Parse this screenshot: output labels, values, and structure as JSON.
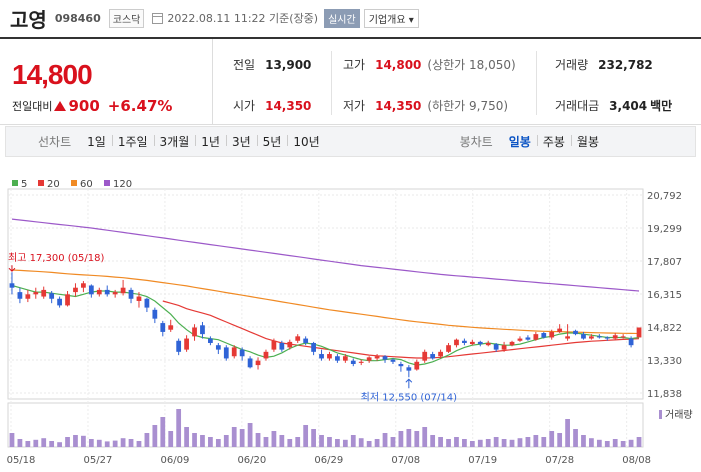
{
  "header": {
    "name": "고영",
    "code": "098460",
    "market": "코스닥",
    "datetime": "2022.08.11 11:22 기준(장중)",
    "realtime": "실시간",
    "overview": "기업개요 ▾"
  },
  "summary": {
    "price": "14,800",
    "change_label": "전일대비",
    "change": "900",
    "change_pct": "+6.47%",
    "prev_close_label": "전일",
    "prev_close": "13,900",
    "high_label": "고가",
    "high": "14,800",
    "upper_limit": "(상한가 18,050)",
    "volume_label": "거래량",
    "volume": "232,782",
    "open_label": "시가",
    "open": "14,350",
    "low_label": "저가",
    "low": "14,350",
    "lower_limit": "(하한가 9,750)",
    "amount_label": "거래대금",
    "amount": "3,404",
    "amount_unit": "백만"
  },
  "line_tabs": {
    "title": "선차트",
    "items": [
      "1일",
      "1주일",
      "3개월",
      "1년",
      "3년",
      "5년",
      "10년"
    ]
  },
  "candle_tabs": {
    "title": "봉차트",
    "items": [
      "일봉",
      "주봉",
      "월봉"
    ],
    "active": "일봉"
  },
  "colors": {
    "up": "#e53935",
    "down": "#2f63d6",
    "ma5": "#4caf50",
    "ma20": "#e53935",
    "ma60": "#f08a24",
    "ma120": "#9c59c9",
    "volume": "#a98fd0"
  },
  "chart_data": {
    "type": "candlestick",
    "legend": [
      "5",
      "20",
      "60",
      "120"
    ],
    "x_labels": [
      "05/18",
      "05/27",
      "06/09",
      "06/20",
      "06/29",
      "07/08",
      "07/19",
      "07/28",
      "08/08"
    ],
    "y_ticks": [
      "20,792",
      "19,299",
      "17,807",
      "16,315",
      "14,822",
      "13,330",
      "11,838"
    ],
    "ylim": [
      11838,
      20792
    ],
    "high_annotation": "최고 17,300 (05/18)",
    "low_annotation": "최저 12,550 (07/14)",
    "volume_label": "거래량",
    "candles": [
      [
        16800,
        16600,
        17300,
        16300
      ],
      [
        16400,
        16100,
        16600,
        15900
      ],
      [
        16100,
        16300,
        16500,
        15950
      ],
      [
        16300,
        16400,
        16600,
        16100
      ],
      [
        16200,
        16500,
        16650,
        16100
      ],
      [
        16350,
        16100,
        16450,
        15900
      ],
      [
        16100,
        15800,
        16200,
        15700
      ],
      [
        15800,
        16300,
        16450,
        15750
      ],
      [
        16400,
        16600,
        16800,
        16200
      ],
      [
        16600,
        16800,
        16900,
        16400
      ],
      [
        16700,
        16300,
        16750,
        16150
      ],
      [
        16300,
        16500,
        16600,
        16200
      ],
      [
        16500,
        16300,
        16700,
        16200
      ],
      [
        16300,
        16400,
        16500,
        16150
      ],
      [
        16350,
        16600,
        16950,
        16250
      ],
      [
        16500,
        16100,
        16600,
        15900
      ],
      [
        16000,
        16200,
        16400,
        15700
      ],
      [
        16100,
        15700,
        16150,
        15500
      ],
      [
        15600,
        15200,
        15700,
        15000
      ],
      [
        15000,
        14600,
        15100,
        14400
      ],
      [
        14700,
        14900,
        15150,
        14600
      ],
      [
        14200,
        13700,
        14300,
        13550
      ],
      [
        13800,
        14300,
        14450,
        13700
      ],
      [
        14400,
        14800,
        14950,
        14200
      ],
      [
        14900,
        14500,
        15050,
        14300
      ],
      [
        14300,
        14100,
        14400,
        14000
      ],
      [
        14000,
        13800,
        14100,
        13600
      ],
      [
        13900,
        13400,
        14000,
        13300
      ],
      [
        13500,
        13900,
        14000,
        13400
      ],
      [
        13800,
        13500,
        13900,
        13300
      ],
      [
        13400,
        13000,
        13500,
        12950
      ],
      [
        13100,
        13300,
        13450,
        12900
      ],
      [
        13400,
        13700,
        13800,
        13300
      ],
      [
        13800,
        14200,
        14300,
        13700
      ],
      [
        14100,
        13800,
        14200,
        13700
      ],
      [
        13900,
        14150,
        14250,
        13800
      ],
      [
        14200,
        14400,
        14500,
        14100
      ],
      [
        14300,
        14100,
        14400,
        14000
      ],
      [
        14100,
        13700,
        14150,
        13550
      ],
      [
        13600,
        13400,
        13800,
        13300
      ],
      [
        13400,
        13600,
        13700,
        13300
      ],
      [
        13500,
        13300,
        13600,
        13200
      ],
      [
        13300,
        13500,
        13600,
        13200
      ],
      [
        13300,
        13150,
        13400,
        13050
      ],
      [
        13200,
        13250,
        13350,
        13100
      ],
      [
        13300,
        13450,
        13500,
        13200
      ],
      [
        13400,
        13500,
        13600,
        13300
      ],
      [
        13500,
        13350,
        13550,
        13200
      ],
      [
        13350,
        13250,
        13400,
        13150
      ],
      [
        13150,
        13050,
        13250,
        12800
      ],
      [
        13000,
        12850,
        13100,
        12550
      ],
      [
        12900,
        13250,
        13350,
        12850
      ],
      [
        13300,
        13700,
        13800,
        13200
      ],
      [
        13600,
        13400,
        13700,
        13350
      ],
      [
        13500,
        13700,
        13800,
        13400
      ],
      [
        13700,
        14000,
        14100,
        13650
      ],
      [
        14000,
        14250,
        14300,
        13900
      ],
      [
        14200,
        14100,
        14300,
        14000
      ],
      [
        14050,
        14150,
        14250,
        14000
      ],
      [
        14150,
        14050,
        14200,
        13950
      ],
      [
        14000,
        14100,
        14200,
        13950
      ],
      [
        14050,
        13800,
        14100,
        13700
      ],
      [
        13800,
        14000,
        14150,
        13700
      ],
      [
        14000,
        14150,
        14200,
        13950
      ],
      [
        14200,
        14300,
        14400,
        14150
      ],
      [
        14350,
        14250,
        14450,
        14200
      ],
      [
        14250,
        14500,
        14600,
        14200
      ],
      [
        14550,
        14350,
        14600,
        14300
      ],
      [
        14350,
        14600,
        14700,
        14250
      ],
      [
        14600,
        14750,
        14950,
        14550
      ],
      [
        14300,
        14400,
        14950,
        14200
      ],
      [
        14650,
        14500,
        14700,
        14450
      ],
      [
        14500,
        14300,
        14600,
        14250
      ],
      [
        14300,
        14400,
        14500,
        14250
      ],
      [
        14400,
        14350,
        14500,
        14300
      ],
      [
        14350,
        14300,
        14400,
        14200
      ],
      [
        14300,
        14450,
        14550,
        14250
      ],
      [
        14400,
        14400,
        14500,
        14300
      ],
      [
        14300,
        14000,
        14400,
        13900
      ],
      [
        14350,
        14800,
        14800,
        14350
      ]
    ],
    "ma5": [
      16700,
      16600,
      16500,
      16400,
      16400,
      16350,
      16300,
      16250,
      16200,
      16300,
      16400,
      16450,
      16450,
      16400,
      16400,
      16350,
      16300,
      16200,
      16000,
      15700,
      15400,
      15000,
      14700,
      14450,
      14350,
      14300,
      14250,
      14100,
      13950,
      13800,
      13700,
      13550,
      13450,
      13500,
      13650,
      13850,
      14000,
      14100,
      14050,
      13950,
      13800,
      13650,
      13550,
      13450,
      13350,
      13300,
      13300,
      13350,
      13400,
      13350,
      13200,
      13100,
      13150,
      13250,
      13400,
      13550,
      13750,
      13900,
      14000,
      14050,
      14100,
      14050,
      14000,
      14000,
      14050,
      14150,
      14250,
      14350,
      14400,
      14500,
      14550,
      14550,
      14500,
      14450,
      14400,
      14350,
      14350,
      14350,
      14300,
      14350
    ],
    "ma20": [
      null,
      null,
      null,
      null,
      null,
      null,
      null,
      null,
      null,
      null,
      null,
      null,
      null,
      null,
      null,
      null,
      null,
      null,
      null,
      16000,
      15900,
      15800,
      15650,
      15550,
      15450,
      15350,
      15200,
      15050,
      14900,
      14750,
      14600,
      14450,
      14300,
      14200,
      14100,
      14050,
      14000,
      13950,
      13900,
      13850,
      13800,
      13750,
      13700,
      13650,
      13600,
      13550,
      13520,
      13500,
      13480,
      13460,
      13440,
      13420,
      13420,
      13430,
      13450,
      13480,
      13520,
      13560,
      13600,
      13640,
      13680,
      13720,
      13760,
      13800,
      13840,
      13880,
      13920,
      13960,
      14000,
      14040,
      14080,
      14120,
      14150,
      14180,
      14200,
      14220,
      14240,
      14260,
      14270,
      14300
    ],
    "ma60": [
      17400,
      17380,
      17360,
      17340,
      17320,
      17290,
      17260,
      17230,
      17200,
      17180,
      17160,
      17140,
      17110,
      17080,
      17050,
      17010,
      16970,
      16930,
      16880,
      16830,
      16780,
      16730,
      16680,
      16620,
      16560,
      16500,
      16440,
      16380,
      16320,
      16260,
      16200,
      16140,
      16080,
      16020,
      15960,
      15900,
      15840,
      15780,
      15720,
      15660,
      15600,
      15550,
      15500,
      15450,
      15400,
      15350,
      15300,
      15250,
      15200,
      15150,
      15100,
      15060,
      15020,
      14980,
      14940,
      14900,
      14870,
      14840,
      14810,
      14780,
      14760,
      14740,
      14720,
      14700,
      14680,
      14660,
      14640,
      14630,
      14620,
      14610,
      14600,
      14590,
      14580,
      14570,
      14560,
      14550,
      14545,
      14540,
      14535,
      14530
    ],
    "ma120": [
      19700,
      19660,
      19620,
      19580,
      19540,
      19500,
      19460,
      19420,
      19380,
      19340,
      19300,
      19250,
      19200,
      19150,
      19100,
      19050,
      19000,
      18950,
      18900,
      18850,
      18800,
      18750,
      18700,
      18650,
      18600,
      18550,
      18500,
      18450,
      18400,
      18350,
      18300,
      18250,
      18200,
      18150,
      18100,
      18050,
      18000,
      17950,
      17900,
      17850,
      17800,
      17750,
      17700,
      17650,
      17600,
      17560,
      17520,
      17480,
      17440,
      17400,
      17360,
      17320,
      17280,
      17240,
      17200,
      17170,
      17140,
      17110,
      17080,
      17050,
      17020,
      16990,
      16960,
      16930,
      16900,
      16870,
      16840,
      16810,
      16780,
      16750,
      16720,
      16690,
      16660,
      16630,
      16600,
      16570,
      16540,
      16510,
      16480,
      16450
    ],
    "volume": [
      0.35,
      0.2,
      0.15,
      0.18,
      0.22,
      0.15,
      0.12,
      0.25,
      0.3,
      0.28,
      0.2,
      0.18,
      0.14,
      0.16,
      0.22,
      0.2,
      0.15,
      0.35,
      0.55,
      0.75,
      0.4,
      0.95,
      0.5,
      0.35,
      0.3,
      0.25,
      0.2,
      0.3,
      0.5,
      0.45,
      0.6,
      0.35,
      0.25,
      0.4,
      0.3,
      0.2,
      0.25,
      0.55,
      0.45,
      0.3,
      0.25,
      0.2,
      0.18,
      0.3,
      0.22,
      0.15,
      0.2,
      0.35,
      0.25,
      0.4,
      0.45,
      0.4,
      0.5,
      0.3,
      0.25,
      0.2,
      0.25,
      0.2,
      0.15,
      0.18,
      0.2,
      0.25,
      0.2,
      0.18,
      0.22,
      0.25,
      0.3,
      0.25,
      0.4,
      0.35,
      0.7,
      0.45,
      0.3,
      0.22,
      0.18,
      0.15,
      0.2,
      0.15,
      0.18,
      0.25
    ]
  }
}
